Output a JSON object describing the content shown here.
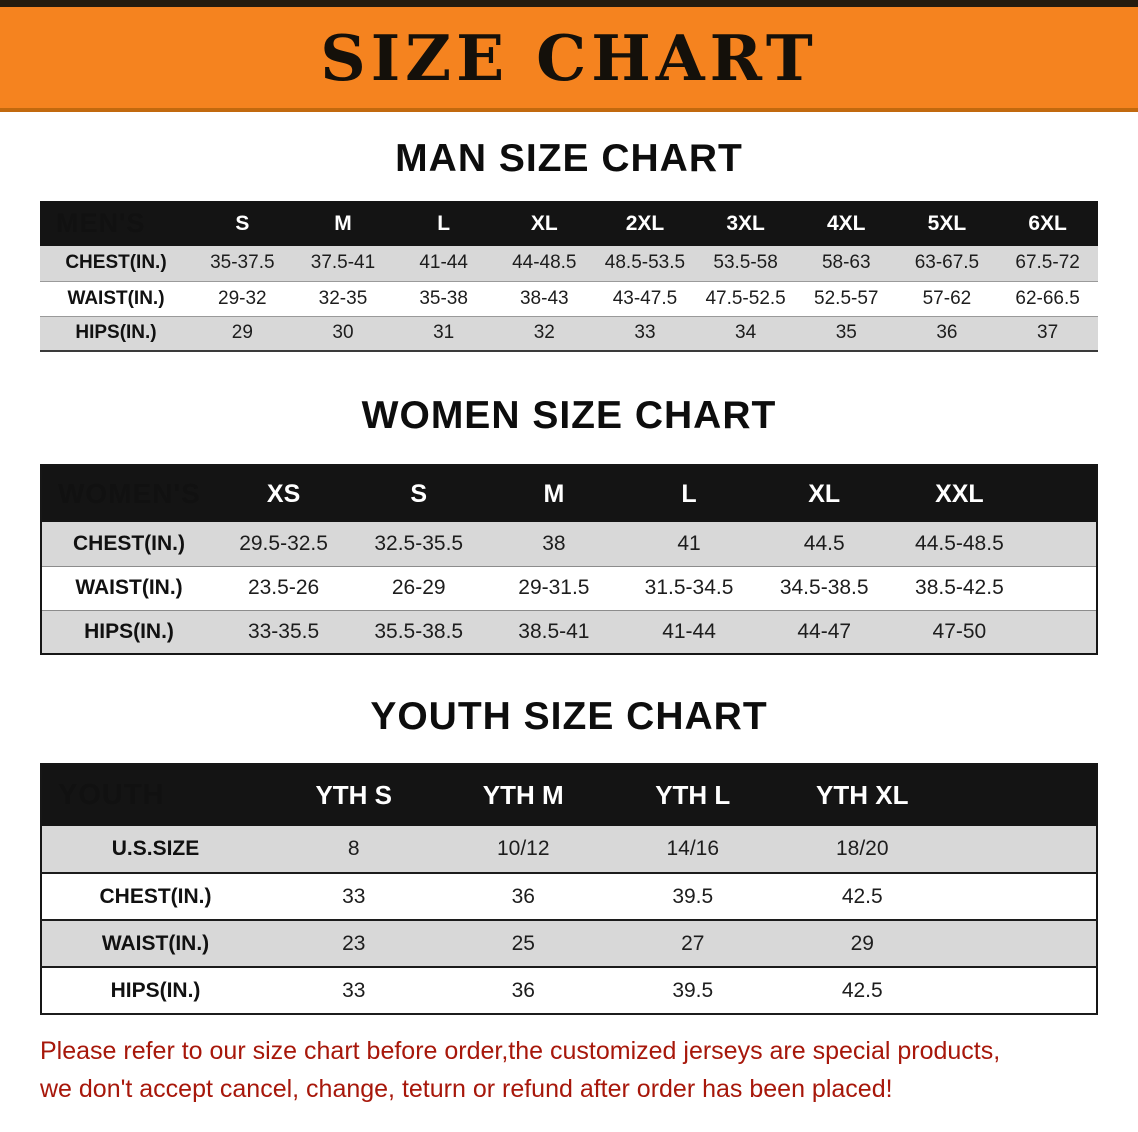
{
  "banner": {
    "title": "SIZE CHART"
  },
  "colors": {
    "banner_bg": "#f5831f",
    "banner_border_bottom": "#c2690e",
    "table_header_bg": "#141414",
    "table_header_text": "#ffffff",
    "row_gray": "#d8d8d8",
    "row_white": "#ffffff",
    "footer_text": "#a7170a"
  },
  "sections": {
    "men": {
      "title": "MAN SIZE CHART",
      "table": {
        "header_label": "MEN'S",
        "columns": [
          "S",
          "M",
          "L",
          "XL",
          "2XL",
          "3XL",
          "4XL",
          "5XL",
          "6XL"
        ],
        "rows": [
          {
            "label": "CHEST(IN.)",
            "values": [
              "35-37.5",
              "37.5-41",
              "41-44",
              "44-48.5",
              "48.5-53.5",
              "53.5-58",
              "58-63",
              "63-67.5",
              "67.5-72"
            ]
          },
          {
            "label": "WAIST(IN.)",
            "values": [
              "29-32",
              "32-35",
              "35-38",
              "38-43",
              "43-47.5",
              "47.5-52.5",
              "52.5-57",
              "57-62",
              "62-66.5"
            ]
          },
          {
            "label": "HIPS(IN.)",
            "values": [
              "29",
              "30",
              "31",
              "32",
              "33",
              "34",
              "35",
              "36",
              "37"
            ]
          }
        ]
      }
    },
    "women": {
      "title": "WOMEN SIZE CHART",
      "table": {
        "header_label": "WOMEN'S",
        "columns": [
          "XS",
          "S",
          "M",
          "L",
          "XL",
          "XXL"
        ],
        "rows": [
          {
            "label": "CHEST(IN.)",
            "values": [
              "29.5-32.5",
              "32.5-35.5",
              "38",
              "41",
              "44.5",
              "44.5-48.5"
            ]
          },
          {
            "label": "WAIST(IN.)",
            "values": [
              "23.5-26",
              "26-29",
              "29-31.5",
              "31.5-34.5",
              "34.5-38.5",
              "38.5-42.5"
            ]
          },
          {
            "label": "HIPS(IN.)",
            "values": [
              "33-35.5",
              "35.5-38.5",
              "38.5-41",
              "41-44",
              "44-47",
              "47-50"
            ]
          }
        ]
      }
    },
    "youth": {
      "title": "YOUTH SIZE CHART",
      "table": {
        "header_label": "YOUTH",
        "columns": [
          "YTH S",
          "YTH M",
          "YTH L",
          "YTH XL"
        ],
        "rows": [
          {
            "label": "U.S.SIZE",
            "values": [
              "8",
              "10/12",
              "14/16",
              "18/20"
            ]
          },
          {
            "label": "CHEST(IN.)",
            "values": [
              "33",
              "36",
              "39.5",
              "42.5"
            ]
          },
          {
            "label": "WAIST(IN.)",
            "values": [
              "23",
              "25",
              "27",
              "29"
            ]
          },
          {
            "label": "HIPS(IN.)",
            "values": [
              "33",
              "36",
              "39.5",
              "42.5"
            ]
          }
        ]
      }
    }
  },
  "footer": {
    "line1": "Please refer to our size chart before order,the customized jerseys are special products,",
    "line2": "we don't accept cancel, change, teturn or refund after order has been placed!"
  }
}
